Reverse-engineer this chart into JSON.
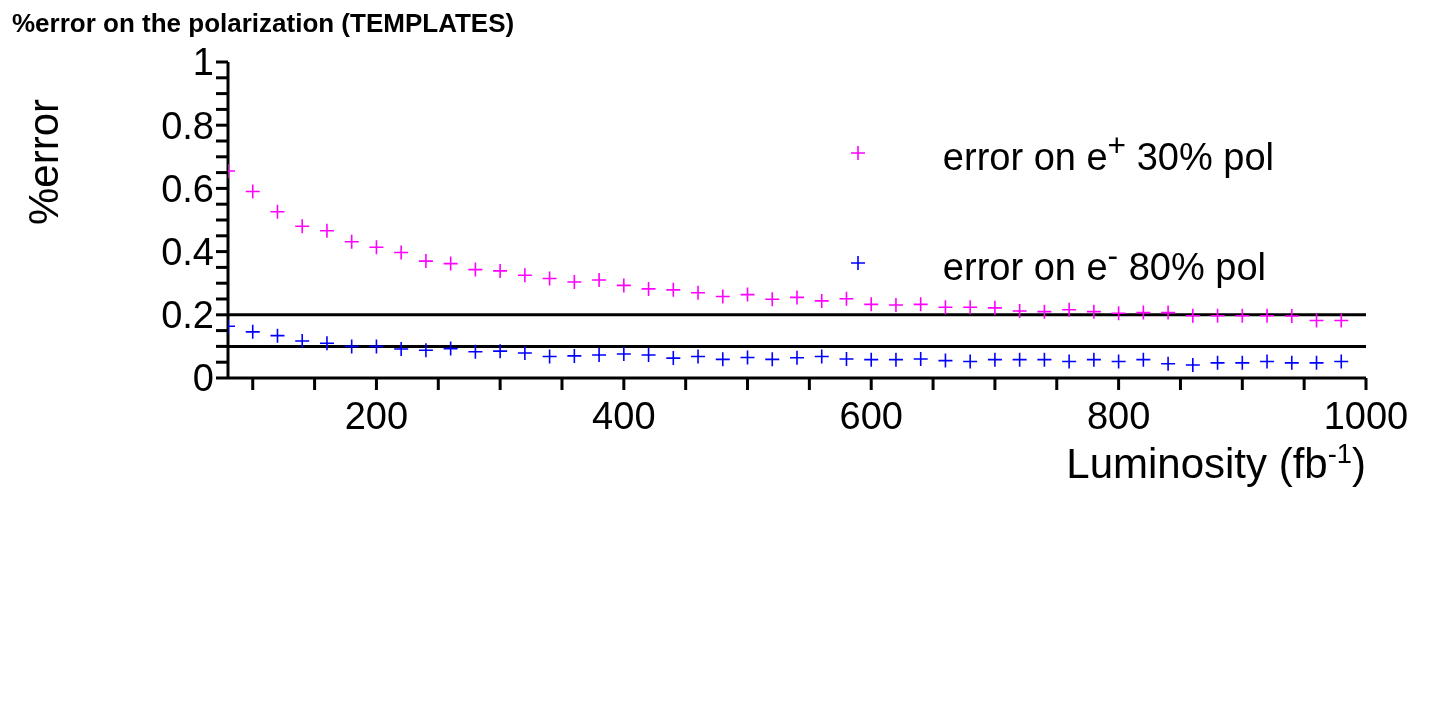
{
  "chart_data": {
    "type": "scatter",
    "title": "%error on the polarization (TEMPLATES)",
    "xlabel": "Luminosity (fb$^{-1}$)",
    "ylabel": "%error",
    "x": [
      80,
      100,
      120,
      140,
      160,
      180,
      200,
      220,
      240,
      260,
      280,
      300,
      320,
      340,
      360,
      380,
      400,
      420,
      440,
      460,
      480,
      500,
      520,
      540,
      560,
      580,
      600,
      620,
      640,
      660,
      680,
      700,
      720,
      740,
      760,
      780,
      800,
      820,
      840,
      860,
      880,
      900,
      920,
      940,
      960,
      980
    ],
    "series": [
      {
        "name": "error on e$^{+}$ 30% pol",
        "color": "#ff00ff",
        "values": [
          0.655,
          0.59,
          0.526,
          0.48,
          0.466,
          0.431,
          0.414,
          0.397,
          0.37,
          0.362,
          0.343,
          0.339,
          0.325,
          0.315,
          0.304,
          0.31,
          0.293,
          0.282,
          0.279,
          0.27,
          0.258,
          0.264,
          0.249,
          0.255,
          0.244,
          0.251,
          0.233,
          0.231,
          0.233,
          0.224,
          0.224,
          0.222,
          0.212,
          0.21,
          0.216,
          0.21,
          0.205,
          0.207,
          0.207,
          0.197,
          0.197,
          0.197,
          0.197,
          0.196,
          0.182,
          0.182
        ]
      },
      {
        "name": "error on e$^{-}$ 80% pol",
        "color": "#0000ff",
        "values": [
          0.164,
          0.146,
          0.134,
          0.117,
          0.11,
          0.1,
          0.1,
          0.092,
          0.088,
          0.093,
          0.083,
          0.085,
          0.079,
          0.068,
          0.07,
          0.073,
          0.076,
          0.073,
          0.063,
          0.068,
          0.059,
          0.065,
          0.059,
          0.064,
          0.068,
          0.06,
          0.058,
          0.058,
          0.06,
          0.055,
          0.052,
          0.058,
          0.058,
          0.058,
          0.052,
          0.058,
          0.052,
          0.058,
          0.045,
          0.041,
          0.048,
          0.048,
          0.052,
          0.048,
          0.048,
          0.052
        ]
      }
    ],
    "xlim": [
      80,
      1000
    ],
    "xticks": [
      {
        "value": 100,
        "label": null
      },
      {
        "value": 150,
        "label": null
      },
      200,
      {
        "value": 250,
        "label": null
      },
      {
        "value": 300,
        "label": null
      },
      {
        "value": 350,
        "label": null
      },
      400,
      {
        "value": 450,
        "label": null
      },
      {
        "value": 500,
        "label": null
      },
      {
        "value": 550,
        "label": null
      },
      600,
      {
        "value": 650,
        "label": null
      },
      {
        "value": 700,
        "label": null
      },
      {
        "value": 750,
        "label": null
      },
      800,
      {
        "value": 850,
        "label": null
      },
      {
        "value": 900,
        "label": null
      },
      {
        "value": 950,
        "label": null
      },
      1000
    ],
    "ylim": [
      0,
      1
    ],
    "yticks": [
      0,
      {
        "value": 0.05,
        "label": null
      },
      {
        "value": 0.1,
        "label": null
      },
      {
        "value": 0.15,
        "label": null
      },
      0.2,
      {
        "value": 0.25,
        "label": null
      },
      {
        "value": 0.3,
        "label": null
      },
      {
        "value": 0.35,
        "label": null
      },
      0.4,
      {
        "value": 0.45,
        "label": null
      },
      {
        "value": 0.5,
        "label": null
      },
      {
        "value": 0.55,
        "label": null
      },
      0.6,
      {
        "value": 0.65,
        "label": null
      },
      {
        "value": 0.7,
        "label": null
      },
      {
        "value": 0.75,
        "label": null
      },
      0.8,
      {
        "value": 0.85,
        "label": null
      },
      {
        "value": 0.9,
        "label": null
      },
      {
        "value": 0.95,
        "label": null
      },
      1
    ],
    "ref_lines": [
      {
        "axis": "y",
        "value": 0.2,
        "color": "#000000"
      },
      {
        "axis": "y",
        "value": 0.1,
        "color": "#000000"
      }
    ],
    "grid": false,
    "legend": "top right",
    "marker": "cross"
  }
}
